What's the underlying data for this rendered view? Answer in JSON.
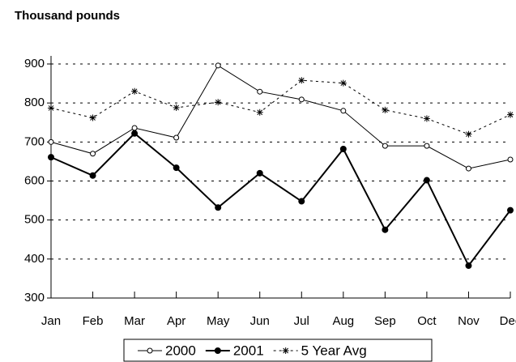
{
  "chart_data": {
    "type": "line",
    "title": "Thousand pounds",
    "categories": [
      "Jan",
      "Feb",
      "Mar",
      "Apr",
      "May",
      "Jun",
      "Jul",
      "Aug",
      "Sep",
      "Oct",
      "Nov",
      "Dec"
    ],
    "series": [
      {
        "name": "2000",
        "color": "#000000",
        "marker": "open-circle",
        "line_style": "solid",
        "line_width": 1,
        "values": [
          700,
          670,
          736,
          711,
          896,
          829,
          809,
          780,
          690,
          690,
          632,
          655
        ]
      },
      {
        "name": "2001",
        "color": "#000000",
        "marker": "filled-circle",
        "line_style": "solid",
        "line_width": 2,
        "values": [
          661,
          614,
          722,
          634,
          532,
          620,
          548,
          682,
          475,
          602,
          383,
          525
        ]
      },
      {
        "name": "5 Year Avg",
        "color": "#000000",
        "marker": "asterisk",
        "line_style": "dashed",
        "line_width": 1,
        "values": [
          787,
          762,
          830,
          788,
          802,
          776,
          858,
          851,
          782,
          760,
          720,
          770
        ]
      }
    ],
    "ylim": [
      300,
      900
    ],
    "yticks": [
      300,
      400,
      500,
      600,
      700,
      800,
      900
    ],
    "grid": true,
    "legend": "bottom"
  }
}
